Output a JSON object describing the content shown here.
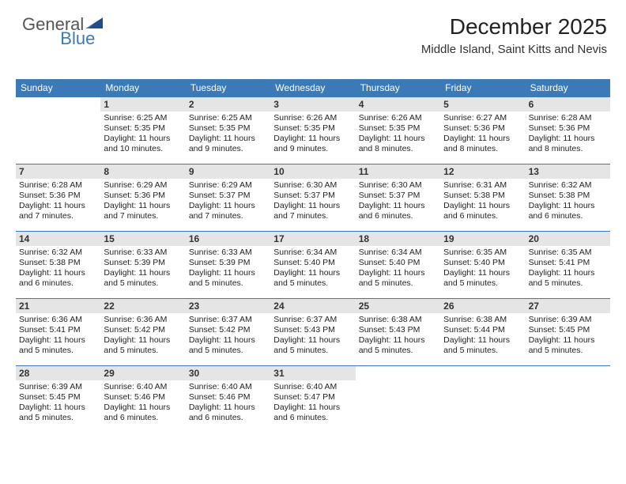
{
  "brand": {
    "word1": "General",
    "word2": "Blue"
  },
  "header": {
    "title": "December 2025",
    "location": "Middle Island, Saint Kitts and Nevis"
  },
  "colors": {
    "accent": "#3b79b7",
    "header_text": "#ffffff",
    "daybar_bg": "#e5e5e5",
    "rule": "#3b79b7",
    "body_text": "#222222",
    "page_bg": "#ffffff"
  },
  "days_of_week": [
    "Sunday",
    "Monday",
    "Tuesday",
    "Wednesday",
    "Thursday",
    "Friday",
    "Saturday"
  ],
  "weeks": [
    [
      null,
      {
        "n": "1",
        "sr": "Sunrise: 6:25 AM",
        "ss": "Sunset: 5:35 PM",
        "dl1": "Daylight: 11 hours",
        "dl2": "and 10 minutes."
      },
      {
        "n": "2",
        "sr": "Sunrise: 6:25 AM",
        "ss": "Sunset: 5:35 PM",
        "dl1": "Daylight: 11 hours",
        "dl2": "and 9 minutes."
      },
      {
        "n": "3",
        "sr": "Sunrise: 6:26 AM",
        "ss": "Sunset: 5:35 PM",
        "dl1": "Daylight: 11 hours",
        "dl2": "and 9 minutes."
      },
      {
        "n": "4",
        "sr": "Sunrise: 6:26 AM",
        "ss": "Sunset: 5:35 PM",
        "dl1": "Daylight: 11 hours",
        "dl2": "and 8 minutes."
      },
      {
        "n": "5",
        "sr": "Sunrise: 6:27 AM",
        "ss": "Sunset: 5:36 PM",
        "dl1": "Daylight: 11 hours",
        "dl2": "and 8 minutes."
      },
      {
        "n": "6",
        "sr": "Sunrise: 6:28 AM",
        "ss": "Sunset: 5:36 PM",
        "dl1": "Daylight: 11 hours",
        "dl2": "and 8 minutes."
      }
    ],
    [
      {
        "n": "7",
        "sr": "Sunrise: 6:28 AM",
        "ss": "Sunset: 5:36 PM",
        "dl1": "Daylight: 11 hours",
        "dl2": "and 7 minutes."
      },
      {
        "n": "8",
        "sr": "Sunrise: 6:29 AM",
        "ss": "Sunset: 5:36 PM",
        "dl1": "Daylight: 11 hours",
        "dl2": "and 7 minutes."
      },
      {
        "n": "9",
        "sr": "Sunrise: 6:29 AM",
        "ss": "Sunset: 5:37 PM",
        "dl1": "Daylight: 11 hours",
        "dl2": "and 7 minutes."
      },
      {
        "n": "10",
        "sr": "Sunrise: 6:30 AM",
        "ss": "Sunset: 5:37 PM",
        "dl1": "Daylight: 11 hours",
        "dl2": "and 7 minutes."
      },
      {
        "n": "11",
        "sr": "Sunrise: 6:30 AM",
        "ss": "Sunset: 5:37 PM",
        "dl1": "Daylight: 11 hours",
        "dl2": "and 6 minutes."
      },
      {
        "n": "12",
        "sr": "Sunrise: 6:31 AM",
        "ss": "Sunset: 5:38 PM",
        "dl1": "Daylight: 11 hours",
        "dl2": "and 6 minutes."
      },
      {
        "n": "13",
        "sr": "Sunrise: 6:32 AM",
        "ss": "Sunset: 5:38 PM",
        "dl1": "Daylight: 11 hours",
        "dl2": "and 6 minutes."
      }
    ],
    [
      {
        "n": "14",
        "sr": "Sunrise: 6:32 AM",
        "ss": "Sunset: 5:38 PM",
        "dl1": "Daylight: 11 hours",
        "dl2": "and 6 minutes."
      },
      {
        "n": "15",
        "sr": "Sunrise: 6:33 AM",
        "ss": "Sunset: 5:39 PM",
        "dl1": "Daylight: 11 hours",
        "dl2": "and 5 minutes."
      },
      {
        "n": "16",
        "sr": "Sunrise: 6:33 AM",
        "ss": "Sunset: 5:39 PM",
        "dl1": "Daylight: 11 hours",
        "dl2": "and 5 minutes."
      },
      {
        "n": "17",
        "sr": "Sunrise: 6:34 AM",
        "ss": "Sunset: 5:40 PM",
        "dl1": "Daylight: 11 hours",
        "dl2": "and 5 minutes."
      },
      {
        "n": "18",
        "sr": "Sunrise: 6:34 AM",
        "ss": "Sunset: 5:40 PM",
        "dl1": "Daylight: 11 hours",
        "dl2": "and 5 minutes."
      },
      {
        "n": "19",
        "sr": "Sunrise: 6:35 AM",
        "ss": "Sunset: 5:40 PM",
        "dl1": "Daylight: 11 hours",
        "dl2": "and 5 minutes."
      },
      {
        "n": "20",
        "sr": "Sunrise: 6:35 AM",
        "ss": "Sunset: 5:41 PM",
        "dl1": "Daylight: 11 hours",
        "dl2": "and 5 minutes."
      }
    ],
    [
      {
        "n": "21",
        "sr": "Sunrise: 6:36 AM",
        "ss": "Sunset: 5:41 PM",
        "dl1": "Daylight: 11 hours",
        "dl2": "and 5 minutes."
      },
      {
        "n": "22",
        "sr": "Sunrise: 6:36 AM",
        "ss": "Sunset: 5:42 PM",
        "dl1": "Daylight: 11 hours",
        "dl2": "and 5 minutes."
      },
      {
        "n": "23",
        "sr": "Sunrise: 6:37 AM",
        "ss": "Sunset: 5:42 PM",
        "dl1": "Daylight: 11 hours",
        "dl2": "and 5 minutes."
      },
      {
        "n": "24",
        "sr": "Sunrise: 6:37 AM",
        "ss": "Sunset: 5:43 PM",
        "dl1": "Daylight: 11 hours",
        "dl2": "and 5 minutes."
      },
      {
        "n": "25",
        "sr": "Sunrise: 6:38 AM",
        "ss": "Sunset: 5:43 PM",
        "dl1": "Daylight: 11 hours",
        "dl2": "and 5 minutes."
      },
      {
        "n": "26",
        "sr": "Sunrise: 6:38 AM",
        "ss": "Sunset: 5:44 PM",
        "dl1": "Daylight: 11 hours",
        "dl2": "and 5 minutes."
      },
      {
        "n": "27",
        "sr": "Sunrise: 6:39 AM",
        "ss": "Sunset: 5:45 PM",
        "dl1": "Daylight: 11 hours",
        "dl2": "and 5 minutes."
      }
    ],
    [
      {
        "n": "28",
        "sr": "Sunrise: 6:39 AM",
        "ss": "Sunset: 5:45 PM",
        "dl1": "Daylight: 11 hours",
        "dl2": "and 5 minutes."
      },
      {
        "n": "29",
        "sr": "Sunrise: 6:40 AM",
        "ss": "Sunset: 5:46 PM",
        "dl1": "Daylight: 11 hours",
        "dl2": "and 6 minutes."
      },
      {
        "n": "30",
        "sr": "Sunrise: 6:40 AM",
        "ss": "Sunset: 5:46 PM",
        "dl1": "Daylight: 11 hours",
        "dl2": "and 6 minutes."
      },
      {
        "n": "31",
        "sr": "Sunrise: 6:40 AM",
        "ss": "Sunset: 5:47 PM",
        "dl1": "Daylight: 11 hours",
        "dl2": "and 6 minutes."
      },
      null,
      null,
      null
    ]
  ]
}
